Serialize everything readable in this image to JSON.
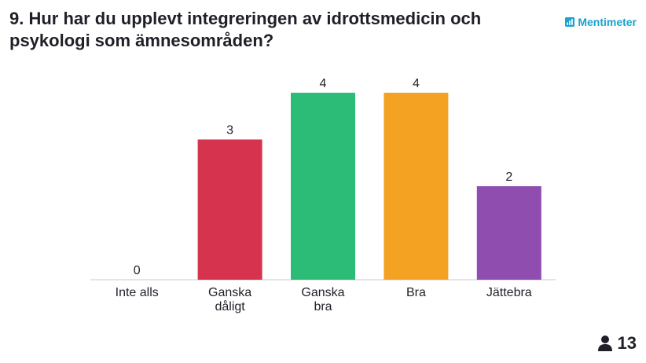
{
  "title": "9. Hur har du upplevt integreringen av idrottsmedicin och psykologi som ämnesområden?",
  "brand": {
    "name": "Mentimeter",
    "icon": "mentimeter-logo-icon",
    "color": "#1aa2d0"
  },
  "participants": {
    "icon": "person-icon",
    "count": "13"
  },
  "chart_data": {
    "type": "bar",
    "categories": [
      [
        "Inte alls"
      ],
      [
        "Ganska",
        "dåligt"
      ],
      [
        "Ganska",
        "bra"
      ],
      [
        "Bra"
      ],
      [
        "Jättebra"
      ]
    ],
    "values": [
      0,
      3,
      4,
      4,
      2
    ],
    "value_labels": [
      "0",
      "3",
      "4",
      "4",
      "2"
    ],
    "colors": [
      "#c9c9d4",
      "#d6334f",
      "#2dbc78",
      "#f3a222",
      "#8f4db0"
    ],
    "ylim": [
      0,
      4
    ],
    "grid": false,
    "axis_color": "#c9c9d4"
  }
}
